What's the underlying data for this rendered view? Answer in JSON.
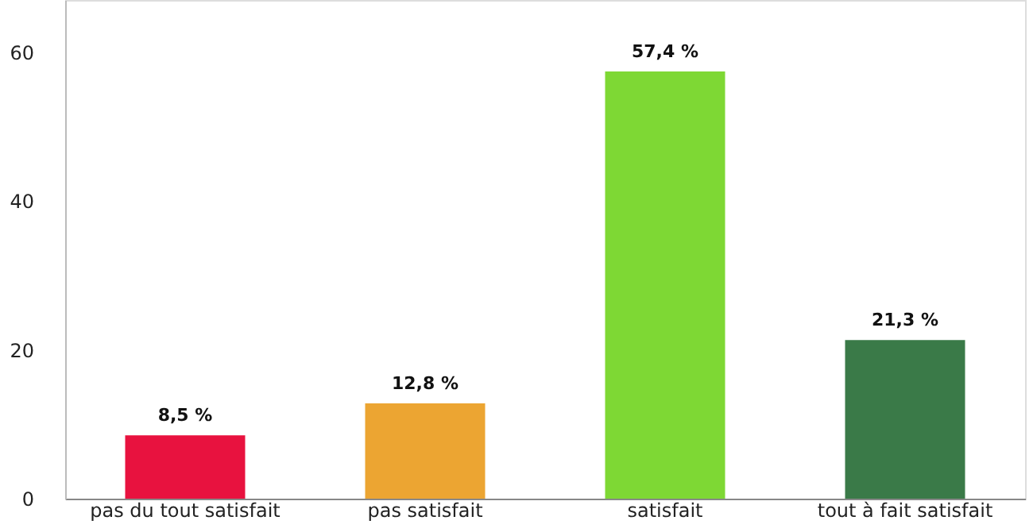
{
  "chart_data": {
    "type": "bar",
    "categories": [
      "pas du tout satisfait",
      "pas satisfait",
      "satisfait",
      "tout à fait satisfait"
    ],
    "values": [
      8.5,
      12.8,
      57.4,
      21.3
    ],
    "colors": [
      "#e8123f",
      "#eca532",
      "#7ed834",
      "#3a7a48"
    ],
    "value_labels": [
      "8,5 %",
      "12,8 %",
      "57,4 %",
      "21,3 %"
    ],
    "ylim": [
      0,
      67
    ],
    "yticks": [
      0,
      20,
      40,
      60
    ],
    "grid": false
  }
}
